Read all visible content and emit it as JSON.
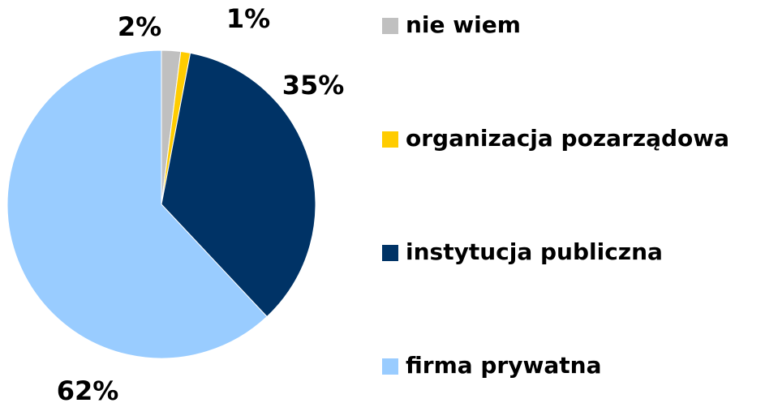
{
  "chart_data": {
    "type": "pie",
    "categories": [
      "nie wiem",
      "organizacja pozarządowa",
      "instytucja publiczna",
      "firma prywatna"
    ],
    "values": [
      2,
      1,
      35,
      62
    ],
    "value_labels": [
      "2%",
      "1%",
      "35%",
      "62%"
    ],
    "colors": [
      "#c0c0c0",
      "#ffcc00",
      "#003366",
      "#99ccff"
    ],
    "legend": "right"
  }
}
